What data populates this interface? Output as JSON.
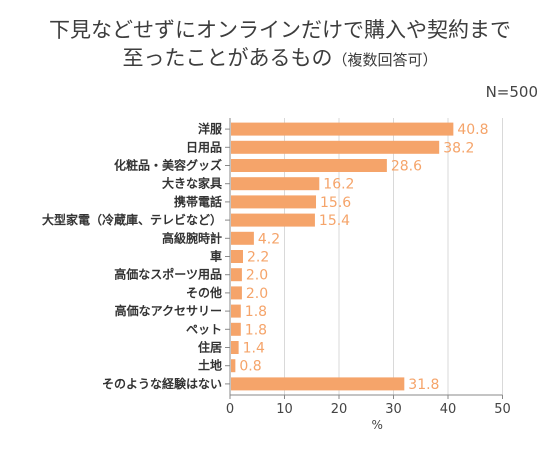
{
  "title": {
    "line1": "下見などせずにオンラインだけで購入や契約まで",
    "line2_main": "至ったことがあるもの",
    "line2_sub": "（複数回答可）"
  },
  "note": "N=500",
  "chart_data": {
    "type": "bar",
    "orientation": "horizontal",
    "categories": [
      "洋服",
      "日用品",
      "化粧品・美容グッズ",
      "大きな家具",
      "携帯電話",
      "大型家電（冷蔵庫、テレビなど）",
      "高級腕時計",
      "車",
      "高価なスポーツ用品",
      "その他",
      "高価なアクセサリー",
      "ペット",
      "住居",
      "土地",
      "そのような経験はない"
    ],
    "values": [
      40.8,
      38.2,
      28.6,
      16.2,
      15.6,
      15.4,
      4.2,
      2.2,
      2.0,
      2.0,
      1.8,
      1.8,
      1.4,
      0.8,
      31.8
    ],
    "value_labels": [
      "40.8",
      "38.2",
      "28.6",
      "16.2",
      "15.6",
      "15.4",
      "4.2",
      "2.2",
      "2.0",
      "2.0",
      "1.8",
      "1.8",
      "1.4",
      "0.8",
      "31.8"
    ],
    "xlim": [
      0,
      50
    ],
    "xticks": [
      0,
      10,
      20,
      30,
      40,
      50
    ],
    "xlabel": "%",
    "bar_color": "#f5a46a",
    "label_color": "#f5a46a"
  }
}
